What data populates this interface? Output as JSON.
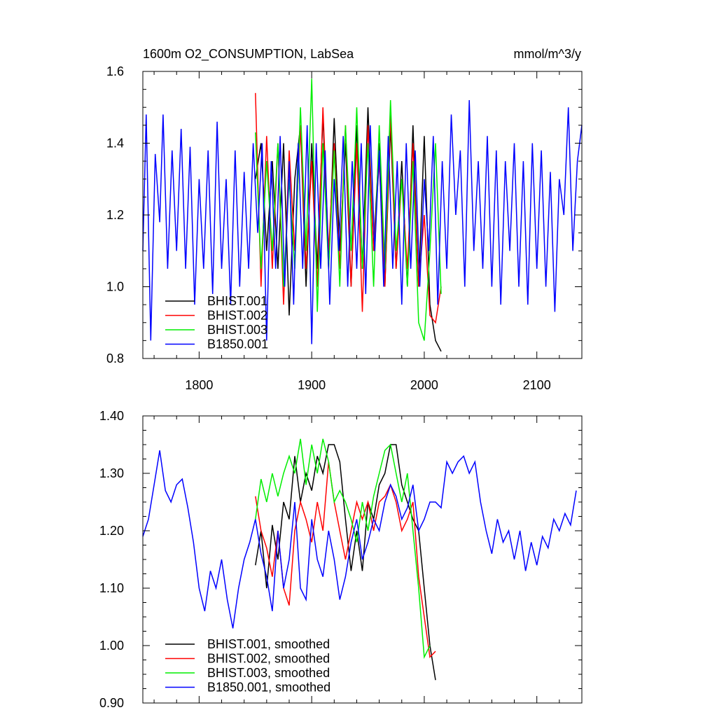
{
  "chart_data": [
    {
      "type": "line",
      "title": "1600m O2_CONSUMPTION, LabSea",
      "units": "mmol/m^3/y",
      "xlim": [
        1750,
        2140
      ],
      "ylim": [
        0.8,
        1.6
      ],
      "xticks": [
        1800,
        1900,
        2000,
        2100
      ],
      "yticks": [
        0.8,
        1.0,
        1.2,
        1.4,
        1.6
      ],
      "ytick_labels": [
        "0.8",
        "1.0",
        "1.2",
        "1.4",
        "1.6"
      ],
      "legend_position": "bottom-left",
      "series": [
        {
          "name": "BHIST.001",
          "color": "#000000",
          "x": [
            1850,
            1855,
            1860,
            1865,
            1870,
            1875,
            1880,
            1885,
            1890,
            1895,
            1900,
            1905,
            1910,
            1915,
            1920,
            1925,
            1930,
            1935,
            1940,
            1945,
            1950,
            1955,
            1960,
            1965,
            1970,
            1975,
            1980,
            1985,
            1990,
            1995,
            2000,
            2005,
            2010,
            2015
          ],
          "y": [
            1.3,
            1.4,
            1.1,
            1.35,
            1.05,
            1.4,
            0.92,
            1.3,
            1.45,
            1.0,
            1.4,
            1.05,
            1.48,
            1.05,
            1.47,
            1.1,
            1.4,
            1.0,
            1.45,
            1.05,
            1.5,
            1.1,
            1.4,
            1.0,
            1.45,
            1.05,
            1.35,
            1.0,
            1.45,
            1.0,
            1.42,
            0.95,
            0.85,
            0.82
          ]
        },
        {
          "name": "BHIST.002",
          "color": "#ff0000",
          "x": [
            1850,
            1855,
            1860,
            1865,
            1870,
            1875,
            1880,
            1885,
            1890,
            1895,
            1900,
            1905,
            1910,
            1915,
            1920,
            1925,
            1930,
            1935,
            1940,
            1945,
            1950,
            1955,
            1960,
            1965,
            1970,
            1975,
            1980,
            1985,
            1990,
            1995,
            2000,
            2005,
            2010,
            2015
          ],
          "y": [
            1.54,
            1.0,
            1.42,
            1.05,
            1.4,
            0.95,
            1.38,
            1.1,
            1.45,
            1.05,
            1.35,
            1.0,
            1.5,
            1.1,
            1.4,
            1.05,
            1.45,
            1.0,
            1.4,
            0.93,
            1.45,
            1.1,
            1.35,
            1.0,
            1.48,
            1.05,
            1.3,
            1.05,
            1.4,
            1.0,
            1.2,
            0.92,
            0.9,
            1.0
          ]
        },
        {
          "name": "BHIST.003",
          "color": "#00ee00",
          "x": [
            1850,
            1855,
            1860,
            1865,
            1870,
            1875,
            1880,
            1885,
            1890,
            1895,
            1900,
            1905,
            1910,
            1915,
            1920,
            1925,
            1930,
            1935,
            1940,
            1945,
            1950,
            1955,
            1960,
            1965,
            1970,
            1975,
            1980,
            1985,
            1990,
            1995,
            2000,
            2005,
            2010,
            2015
          ],
          "y": [
            1.43,
            1.05,
            1.35,
            1.1,
            1.4,
            1.0,
            1.3,
            1.05,
            1.5,
            1.1,
            1.58,
            0.93,
            1.4,
            1.05,
            1.38,
            1.0,
            1.45,
            1.1,
            1.5,
            1.05,
            1.4,
            1.0,
            1.45,
            1.05,
            1.52,
            1.1,
            1.3,
            1.0,
            1.35,
            0.9,
            0.85,
            1.1,
            1.4,
            0.98
          ]
        },
        {
          "name": "B1850.001",
          "color": "#0000ff",
          "x": [
            1750,
            1753,
            1757,
            1761,
            1765,
            1768,
            1772,
            1776,
            1780,
            1784,
            1788,
            1792,
            1796,
            1800,
            1804,
            1808,
            1812,
            1816,
            1820,
            1824,
            1828,
            1832,
            1836,
            1840,
            1844,
            1848,
            1852,
            1856,
            1860,
            1864,
            1868,
            1872,
            1876,
            1880,
            1884,
            1888,
            1892,
            1896,
            1900,
            1904,
            1908,
            1912,
            1916,
            1920,
            1924,
            1928,
            1932,
            1936,
            1940,
            1944,
            1948,
            1952,
            1956,
            1960,
            1964,
            1968,
            1972,
            1976,
            1980,
            1984,
            1988,
            1992,
            1996,
            2000,
            2004,
            2008,
            2012,
            2016,
            2020,
            2024,
            2028,
            2032,
            2036,
            2040,
            2044,
            2048,
            2052,
            2056,
            2060,
            2064,
            2068,
            2072,
            2076,
            2080,
            2084,
            2088,
            2092,
            2096,
            2100,
            2104,
            2108,
            2112,
            2116,
            2120,
            2124,
            2128,
            2132,
            2136,
            2140
          ],
          "y": [
            1.1,
            1.48,
            0.85,
            1.37,
            1.18,
            1.48,
            1.05,
            1.38,
            1.1,
            1.44,
            1.05,
            1.39,
            0.95,
            1.3,
            1.05,
            1.38,
            0.98,
            1.46,
            1.05,
            1.3,
            0.95,
            1.38,
            1.0,
            1.32,
            1.05,
            1.4,
            1.15,
            1.4,
            0.85,
            1.35,
            1.05,
            1.42,
            1.0,
            1.35,
            0.95,
            1.4,
            1.05,
            1.45,
            0.84,
            1.4,
            1.05,
            1.38,
            0.95,
            1.3,
            1.1,
            1.42,
            1.0,
            1.35,
            1.05,
            1.4,
            0.98,
            1.45,
            1.1,
            1.38,
            1.0,
            1.42,
            1.05,
            1.35,
            0.95,
            1.4,
            1.05,
            1.38,
            1.0,
            1.3,
            1.1,
            1.42,
            0.95,
            1.35,
            1.05,
            1.48,
            1.2,
            1.38,
            1.0,
            1.52,
            1.1,
            1.35,
            1.05,
            1.42,
            1.0,
            1.38,
            0.95,
            1.35,
            1.1,
            1.4,
            1.0,
            1.35,
            0.95,
            1.4,
            1.05,
            1.38,
            1.0,
            1.32,
            0.93,
            1.3,
            1.2,
            1.5,
            1.1,
            1.35,
            1.45
          ]
        }
      ]
    },
    {
      "type": "line",
      "xlim": [
        1750,
        2140
      ],
      "ylim": [
        0.9,
        1.4
      ],
      "xticks": [
        1800,
        1900,
        2000,
        2100
      ],
      "yticks": [
        0.9,
        1.0,
        1.1,
        1.2,
        1.3,
        1.4
      ],
      "ytick_labels": [
        "0.90",
        "1.00",
        "1.10",
        "1.20",
        "1.30",
        "1.40"
      ],
      "legend_position": "bottom-left",
      "series": [
        {
          "name": "BHIST.001, smoothed",
          "color": "#000000",
          "x": [
            1850,
            1855,
            1860,
            1865,
            1870,
            1875,
            1880,
            1885,
            1890,
            1895,
            1900,
            1905,
            1910,
            1915,
            1920,
            1925,
            1930,
            1935,
            1940,
            1945,
            1950,
            1955,
            1960,
            1965,
            1970,
            1975,
            1980,
            1985,
            1990,
            1995,
            2000,
            2005,
            2010
          ],
          "y": [
            1.14,
            1.2,
            1.1,
            1.21,
            1.15,
            1.25,
            1.22,
            1.33,
            1.25,
            1.3,
            1.27,
            1.33,
            1.3,
            1.35,
            1.35,
            1.32,
            1.22,
            1.13,
            1.2,
            1.13,
            1.25,
            1.22,
            1.28,
            1.3,
            1.35,
            1.35,
            1.28,
            1.25,
            1.22,
            1.2,
            1.1,
            1.0,
            0.94
          ]
        },
        {
          "name": "BHIST.002, smoothed",
          "color": "#ff0000",
          "x": [
            1850,
            1855,
            1860,
            1865,
            1870,
            1875,
            1880,
            1885,
            1890,
            1895,
            1900,
            1905,
            1910,
            1915,
            1920,
            1925,
            1930,
            1935,
            1940,
            1945,
            1950,
            1955,
            1960,
            1965,
            1970,
            1975,
            1980,
            1985,
            1990,
            1995,
            2000,
            2005,
            2010
          ],
          "y": [
            1.26,
            1.2,
            1.17,
            1.12,
            1.2,
            1.1,
            1.07,
            1.2,
            1.25,
            1.22,
            1.18,
            1.25,
            1.2,
            1.32,
            1.25,
            1.2,
            1.15,
            1.2,
            1.25,
            1.22,
            1.25,
            1.2,
            1.25,
            1.26,
            1.28,
            1.25,
            1.2,
            1.22,
            1.25,
            1.12,
            1.05,
            0.98,
            0.99
          ]
        },
        {
          "name": "BHIST.003, smoothed",
          "color": "#00ee00",
          "x": [
            1850,
            1855,
            1860,
            1865,
            1870,
            1875,
            1880,
            1885,
            1890,
            1895,
            1900,
            1905,
            1910,
            1915,
            1920,
            1925,
            1930,
            1935,
            1940,
            1945,
            1950,
            1955,
            1960,
            1965,
            1970,
            1975,
            1980,
            1985,
            1990,
            1995,
            2000,
            2005
          ],
          "y": [
            1.22,
            1.29,
            1.25,
            1.3,
            1.26,
            1.3,
            1.33,
            1.3,
            1.36,
            1.28,
            1.35,
            1.3,
            1.36,
            1.32,
            1.25,
            1.27,
            1.25,
            1.22,
            1.18,
            1.25,
            1.2,
            1.26,
            1.3,
            1.34,
            1.35,
            1.3,
            1.25,
            1.3,
            1.2,
            1.1,
            0.98,
            1.0
          ]
        },
        {
          "name": "B1850.001, smoothed",
          "color": "#0000ff",
          "x": [
            1750,
            1755,
            1760,
            1765,
            1770,
            1775,
            1780,
            1785,
            1790,
            1795,
            1800,
            1805,
            1810,
            1815,
            1820,
            1825,
            1830,
            1835,
            1840,
            1845,
            1850,
            1855,
            1860,
            1865,
            1870,
            1875,
            1880,
            1885,
            1890,
            1895,
            1900,
            1905,
            1910,
            1915,
            1920,
            1925,
            1930,
            1935,
            1940,
            1945,
            1950,
            1955,
            1960,
            1965,
            1970,
            1975,
            1980,
            1985,
            1990,
            1995,
            2000,
            2005,
            2010,
            2015,
            2020,
            2025,
            2030,
            2035,
            2040,
            2045,
            2050,
            2055,
            2060,
            2065,
            2070,
            2075,
            2080,
            2085,
            2090,
            2095,
            2100,
            2105,
            2110,
            2115,
            2120,
            2125,
            2130,
            2135
          ],
          "y": [
            1.19,
            1.22,
            1.28,
            1.34,
            1.27,
            1.25,
            1.28,
            1.29,
            1.24,
            1.18,
            1.1,
            1.06,
            1.13,
            1.1,
            1.15,
            1.08,
            1.03,
            1.1,
            1.15,
            1.18,
            1.22,
            1.16,
            1.12,
            1.06,
            1.2,
            1.1,
            1.15,
            1.25,
            1.1,
            1.08,
            1.22,
            1.15,
            1.12,
            1.2,
            1.15,
            1.08,
            1.12,
            1.18,
            1.22,
            1.15,
            1.18,
            1.22,
            1.2,
            1.25,
            1.28,
            1.26,
            1.22,
            1.24,
            1.28,
            1.2,
            1.22,
            1.25,
            1.25,
            1.24,
            1.32,
            1.3,
            1.32,
            1.33,
            1.3,
            1.32,
            1.25,
            1.2,
            1.16,
            1.22,
            1.18,
            1.2,
            1.15,
            1.2,
            1.13,
            1.18,
            1.14,
            1.19,
            1.17,
            1.22,
            1.2,
            1.23,
            1.21,
            1.27
          ]
        }
      ]
    }
  ]
}
